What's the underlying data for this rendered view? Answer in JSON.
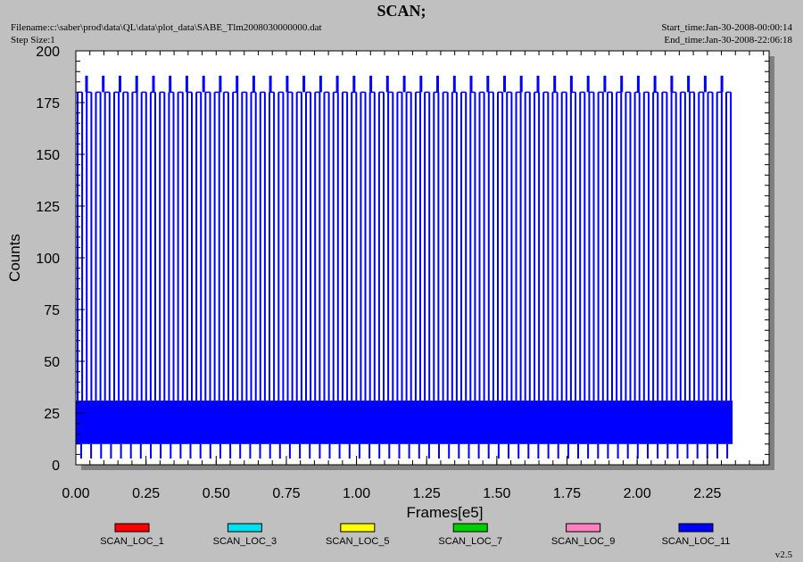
{
  "header": {
    "title": "SCAN;",
    "filename": "Filename:c:\\saber\\prod\\data\\QL\\data\\plot_data\\SABE_Tlm2008030000000.dat",
    "step_size": "Step Size:1",
    "start_time": "Start_time:Jan-30-2008-00:00:14",
    "end_time": "End_time:Jan-30-2008-22:06:18"
  },
  "version": "v2.5",
  "colors": {
    "background": "#c0c0c0",
    "plot_area": "#ffffff",
    "shadow": "#808080",
    "data": "#0000ff"
  },
  "chart_data": {
    "type": "line",
    "xlabel": "Frames[e5]",
    "ylabel": "Counts",
    "xlim": [
      0,
      2.47
    ],
    "ylim": [
      0,
      200
    ],
    "x_ticks": [
      "0.00",
      "0.25",
      "0.50",
      "0.75",
      "1.00",
      "1.25",
      "1.50",
      "1.75",
      "2.00",
      "2.25"
    ],
    "y_ticks": [
      "0",
      "25",
      "50",
      "75",
      "100",
      "125",
      "150",
      "175",
      "200"
    ],
    "x_tick_values": [
      0,
      0.25,
      0.5,
      0.75,
      1.0,
      1.25,
      1.5,
      1.75,
      2.0,
      2.25
    ],
    "y_tick_values": [
      0,
      25,
      50,
      75,
      100,
      125,
      150,
      175,
      200
    ],
    "data_x_range": [
      0,
      2.34
    ],
    "scan_peak_value": 180,
    "scan_spike_value": 188,
    "scan_dense_band": [
      10,
      31
    ],
    "scan_floor_dips": 3,
    "series": [
      {
        "name": "SCAN_LOC_1",
        "color": "#ff0000"
      },
      {
        "name": "SCAN_LOC_3",
        "color": "#00e0f0"
      },
      {
        "name": "SCAN_LOC_5",
        "color": "#ffff00"
      },
      {
        "name": "SCAN_LOC_7",
        "color": "#00d000"
      },
      {
        "name": "SCAN_LOC_9",
        "color": "#ff80c0"
      },
      {
        "name": "SCAN_LOC_11",
        "color": "#0000ff"
      }
    ]
  }
}
